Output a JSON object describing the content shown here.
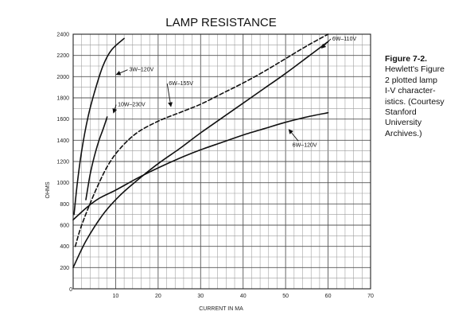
{
  "chart_data": {
    "type": "line",
    "title": "LAMP RESISTANCE",
    "xlabel": "CURRENT IN MA",
    "ylabel": "OHMS",
    "xlim": [
      0,
      70
    ],
    "ylim": [
      0,
      2400
    ],
    "xticks": [
      10,
      20,
      30,
      40,
      50,
      60,
      70
    ],
    "yticks": [
      0,
      200,
      400,
      600,
      800,
      1000,
      1200,
      1400,
      1600,
      1800,
      2000,
      2200,
      2400
    ],
    "grid": true,
    "series": [
      {
        "name": "3W–120V",
        "style": "solid",
        "points": [
          [
            0.2,
            700
          ],
          [
            1,
            1000
          ],
          [
            2,
            1300
          ],
          [
            3.5,
            1620
          ],
          [
            5,
            1850
          ],
          [
            7,
            2100
          ],
          [
            9,
            2250
          ],
          [
            12,
            2360
          ]
        ]
      },
      {
        "name": "10W–230V",
        "style": "solid",
        "points": [
          [
            3,
            840
          ],
          [
            4,
            1080
          ],
          [
            5,
            1250
          ],
          [
            6,
            1390
          ],
          [
            7,
            1500
          ],
          [
            8,
            1620
          ]
        ]
      },
      {
        "name": "6W–155V",
        "style": "dashed",
        "points": [
          [
            0.5,
            400
          ],
          [
            2,
            600
          ],
          [
            5,
            900
          ],
          [
            8,
            1150
          ],
          [
            11,
            1320
          ],
          [
            15,
            1470
          ],
          [
            20,
            1580
          ],
          [
            25,
            1660
          ],
          [
            30,
            1740
          ],
          [
            35,
            1840
          ],
          [
            40,
            1940
          ],
          [
            45,
            2050
          ],
          [
            50,
            2170
          ],
          [
            55,
            2290
          ],
          [
            60,
            2400
          ]
        ]
      },
      {
        "name": "6W–110V",
        "style": "solid",
        "points": [
          [
            0,
            200
          ],
          [
            3,
            450
          ],
          [
            7,
            700
          ],
          [
            11,
            880
          ],
          [
            15,
            1020
          ],
          [
            20,
            1180
          ],
          [
            25,
            1320
          ],
          [
            30,
            1470
          ],
          [
            35,
            1610
          ],
          [
            40,
            1750
          ],
          [
            45,
            1890
          ],
          [
            50,
            2030
          ],
          [
            55,
            2180
          ],
          [
            60,
            2330
          ]
        ]
      },
      {
        "name": "6W–120V",
        "style": "solid",
        "points": [
          [
            0,
            650
          ],
          [
            3,
            760
          ],
          [
            6,
            850
          ],
          [
            10,
            930
          ],
          [
            15,
            1040
          ],
          [
            20,
            1140
          ],
          [
            25,
            1230
          ],
          [
            30,
            1310
          ],
          [
            35,
            1380
          ],
          [
            40,
            1450
          ],
          [
            45,
            1510
          ],
          [
            50,
            1570
          ],
          [
            55,
            1620
          ],
          [
            60,
            1660
          ]
        ]
      }
    ],
    "annotations": [
      {
        "text": "3W–120V",
        "series": 0,
        "at": [
          13.2,
          2050
        ],
        "arrow_to": [
          10.2,
          2020
        ],
        "anchor": "start"
      },
      {
        "text": "10W–230V",
        "series": 1,
        "at": [
          10.5,
          1720
        ],
        "arrow_to": [
          9.5,
          1660
        ],
        "anchor": "start"
      },
      {
        "text": "6W–155V",
        "series": 2,
        "at": [
          22.5,
          1920
        ],
        "arrow_to": [
          23.0,
          1720
        ],
        "anchor": "start"
      },
      {
        "text": "6W–110V",
        "series": 3,
        "at": [
          61.0,
          2340
        ],
        "arrow_to": [
          58.5,
          2270
        ],
        "anchor": "start"
      },
      {
        "text": "6W–120V",
        "series": 4,
        "at": [
          54.5,
          1340
        ],
        "arrow_to": [
          50.8,
          1500
        ],
        "anchor": "middle"
      }
    ]
  },
  "caption": {
    "figure_number": "Figure 7-2.",
    "lines": [
      "Hewlett's Figure",
      "2 plotted lamp",
      "I-V character-",
      "istics. (Courtesy",
      "Stanford",
      "University",
      "Archives.)"
    ]
  }
}
